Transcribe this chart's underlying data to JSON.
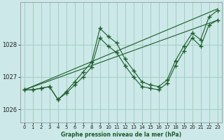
{
  "title": "Graphe pression niveau de la mer (hPa)",
  "bg_color": "#cce8e8",
  "grid_color": "#99ccbb",
  "line_color": "#1a5c2a",
  "xlim": [
    -0.5,
    23.5
  ],
  "ylim": [
    1025.6,
    1029.3
  ],
  "yticks": [
    1026,
    1027,
    1028
  ],
  "xticks": [
    0,
    1,
    2,
    3,
    4,
    5,
    6,
    7,
    8,
    9,
    10,
    11,
    12,
    13,
    14,
    15,
    16,
    17,
    18,
    19,
    20,
    21,
    22,
    23
  ],
  "series1_x": [
    0,
    1,
    2,
    3,
    4,
    5,
    6,
    7,
    8,
    9,
    10,
    11,
    12,
    13,
    14,
    15,
    16,
    17,
    18,
    19,
    20,
    21,
    22,
    23
  ],
  "series1_y": [
    1026.6,
    1026.6,
    1026.65,
    1026.7,
    1026.3,
    1026.55,
    1026.85,
    1027.15,
    1027.45,
    1028.5,
    1028.25,
    1028.05,
    1027.55,
    1027.2,
    1026.85,
    1026.75,
    1026.7,
    1026.9,
    1027.5,
    1027.95,
    1028.35,
    1028.15,
    1028.85,
    1029.05
  ],
  "series2_x": [
    0,
    1,
    2,
    3,
    4,
    5,
    6,
    7,
    8,
    9,
    10,
    11,
    12,
    13,
    14,
    15,
    16,
    17,
    18,
    19,
    20,
    21,
    22,
    23
  ],
  "series2_y": [
    1026.6,
    1026.6,
    1026.65,
    1026.7,
    1026.3,
    1026.5,
    1026.75,
    1027.0,
    1027.3,
    1028.2,
    1027.95,
    1027.75,
    1027.35,
    1027.0,
    1026.7,
    1026.65,
    1026.6,
    1026.8,
    1027.35,
    1027.8,
    1028.2,
    1027.95,
    1028.6,
    1028.75
  ],
  "trend1_x": [
    0,
    23
  ],
  "trend1_y": [
    1026.6,
    1029.1
  ],
  "trend2_x": [
    0,
    23
  ],
  "trend2_y": [
    1026.6,
    1028.75
  ]
}
